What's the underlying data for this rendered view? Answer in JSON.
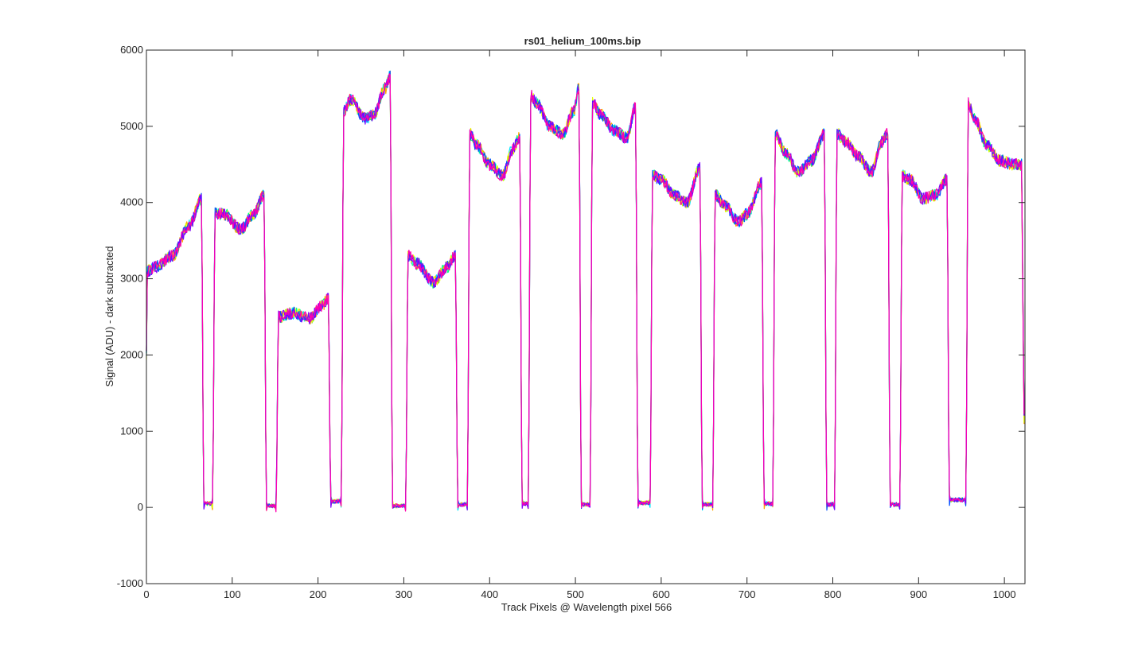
{
  "chart_data": {
    "type": "line",
    "title": "rs01_helium_100ms.bip",
    "xlabel": "Track Pixels @ Wavelength pixel 566",
    "ylabel": "Signal (ADU) - dark subtracted",
    "xlim": [
      0,
      1024
    ],
    "ylim": [
      -1000,
      6000
    ],
    "xticks": [
      0,
      100,
      200,
      300,
      400,
      500,
      600,
      700,
      800,
      900,
      1000
    ],
    "xtick_labels": [
      "0",
      "100",
      "200",
      "300",
      "400",
      "500",
      "600",
      "700",
      "800",
      "900",
      "1000"
    ],
    "yticks": [
      -1000,
      0,
      1000,
      2000,
      3000,
      4000,
      5000,
      6000
    ],
    "ytick_labels": [
      "-1000",
      "0",
      "1000",
      "2000",
      "3000",
      "4000",
      "5000",
      "6000"
    ],
    "grid": false,
    "box": true,
    "series_colors": [
      "#00ff80",
      "#00e5ff",
      "#ffa500",
      "#e5ff00",
      "#0050ff",
      "#8000ff",
      "#ff00b0"
    ],
    "segments": [
      {
        "x": [
          1,
          10,
          30,
          50,
          64
        ],
        "y": [
          3100,
          3150,
          3300,
          3700,
          4050
        ]
      },
      {
        "x": [
          80,
          90,
          110,
          125,
          137
        ],
        "y": [
          3850,
          3850,
          3650,
          3850,
          4100
        ]
      },
      {
        "x": [
          154,
          170,
          190,
          205,
          212
        ],
        "y": [
          2500,
          2550,
          2480,
          2650,
          2750
        ]
      },
      {
        "x": [
          230,
          238,
          255,
          265,
          278,
          284
        ],
        "y": [
          5200,
          5350,
          5100,
          5150,
          5500,
          5650
        ]
      },
      {
        "x": [
          305,
          315,
          335,
          350,
          360
        ],
        "y": [
          3300,
          3200,
          2950,
          3150,
          3300
        ]
      },
      {
        "x": [
          377,
          385,
          400,
          415,
          427,
          435
        ],
        "y": [
          4900,
          4750,
          4500,
          4350,
          4700,
          4850
        ]
      },
      {
        "x": [
          448,
          455,
          470,
          485,
          498,
          504
        ],
        "y": [
          5400,
          5300,
          5000,
          4900,
          5200,
          5500
        ]
      },
      {
        "x": [
          520,
          530,
          545,
          560,
          570
        ],
        "y": [
          5300,
          5150,
          4950,
          4850,
          5250
        ]
      },
      {
        "x": [
          590,
          600,
          615,
          630,
          645
        ],
        "y": [
          4350,
          4300,
          4100,
          4000,
          4450
        ]
      },
      {
        "x": [
          663,
          675,
          690,
          700,
          717
        ],
        "y": [
          4100,
          3950,
          3750,
          3850,
          4250
        ]
      },
      {
        "x": [
          733,
          745,
          760,
          775,
          790
        ],
        "y": [
          4900,
          4650,
          4400,
          4550,
          4900
        ]
      },
      {
        "x": [
          805,
          815,
          830,
          845,
          857,
          864
        ],
        "y": [
          4900,
          4800,
          4600,
          4400,
          4800,
          4900
        ]
      },
      {
        "x": [
          881,
          890,
          905,
          920,
          933
        ],
        "y": [
          4350,
          4300,
          4050,
          4100,
          4300
        ]
      },
      {
        "x": [
          958,
          965,
          980,
          995,
          1010,
          1020
        ],
        "y": [
          5300,
          5100,
          4750,
          4550,
          4500,
          4500
        ]
      }
    ],
    "gaps": [
      {
        "x_from": 64,
        "x_to": 80,
        "floor": 50
      },
      {
        "x_from": 137,
        "x_to": 154,
        "floor": 20
      },
      {
        "x_from": 212,
        "x_to": 230,
        "floor": 80
      },
      {
        "x_from": 284,
        "x_to": 305,
        "floor": 20
      },
      {
        "x_from": 360,
        "x_to": 377,
        "floor": 40
      },
      {
        "x_from": 435,
        "x_to": 448,
        "floor": 50
      },
      {
        "x_from": 504,
        "x_to": 520,
        "floor": 40
      },
      {
        "x_from": 570,
        "x_to": 590,
        "floor": 60
      },
      {
        "x_from": 645,
        "x_to": 663,
        "floor": 40
      },
      {
        "x_from": 717,
        "x_to": 733,
        "floor": 50
      },
      {
        "x_from": 790,
        "x_to": 805,
        "floor": 40
      },
      {
        "x_from": 864,
        "x_to": 881,
        "floor": 40
      },
      {
        "x_from": 933,
        "x_to": 958,
        "floor": 100
      }
    ],
    "start": {
      "x": 0,
      "y": 2000
    },
    "end": {
      "x": 1023,
      "y": 1150
    },
    "noise_amplitude": 80
  }
}
